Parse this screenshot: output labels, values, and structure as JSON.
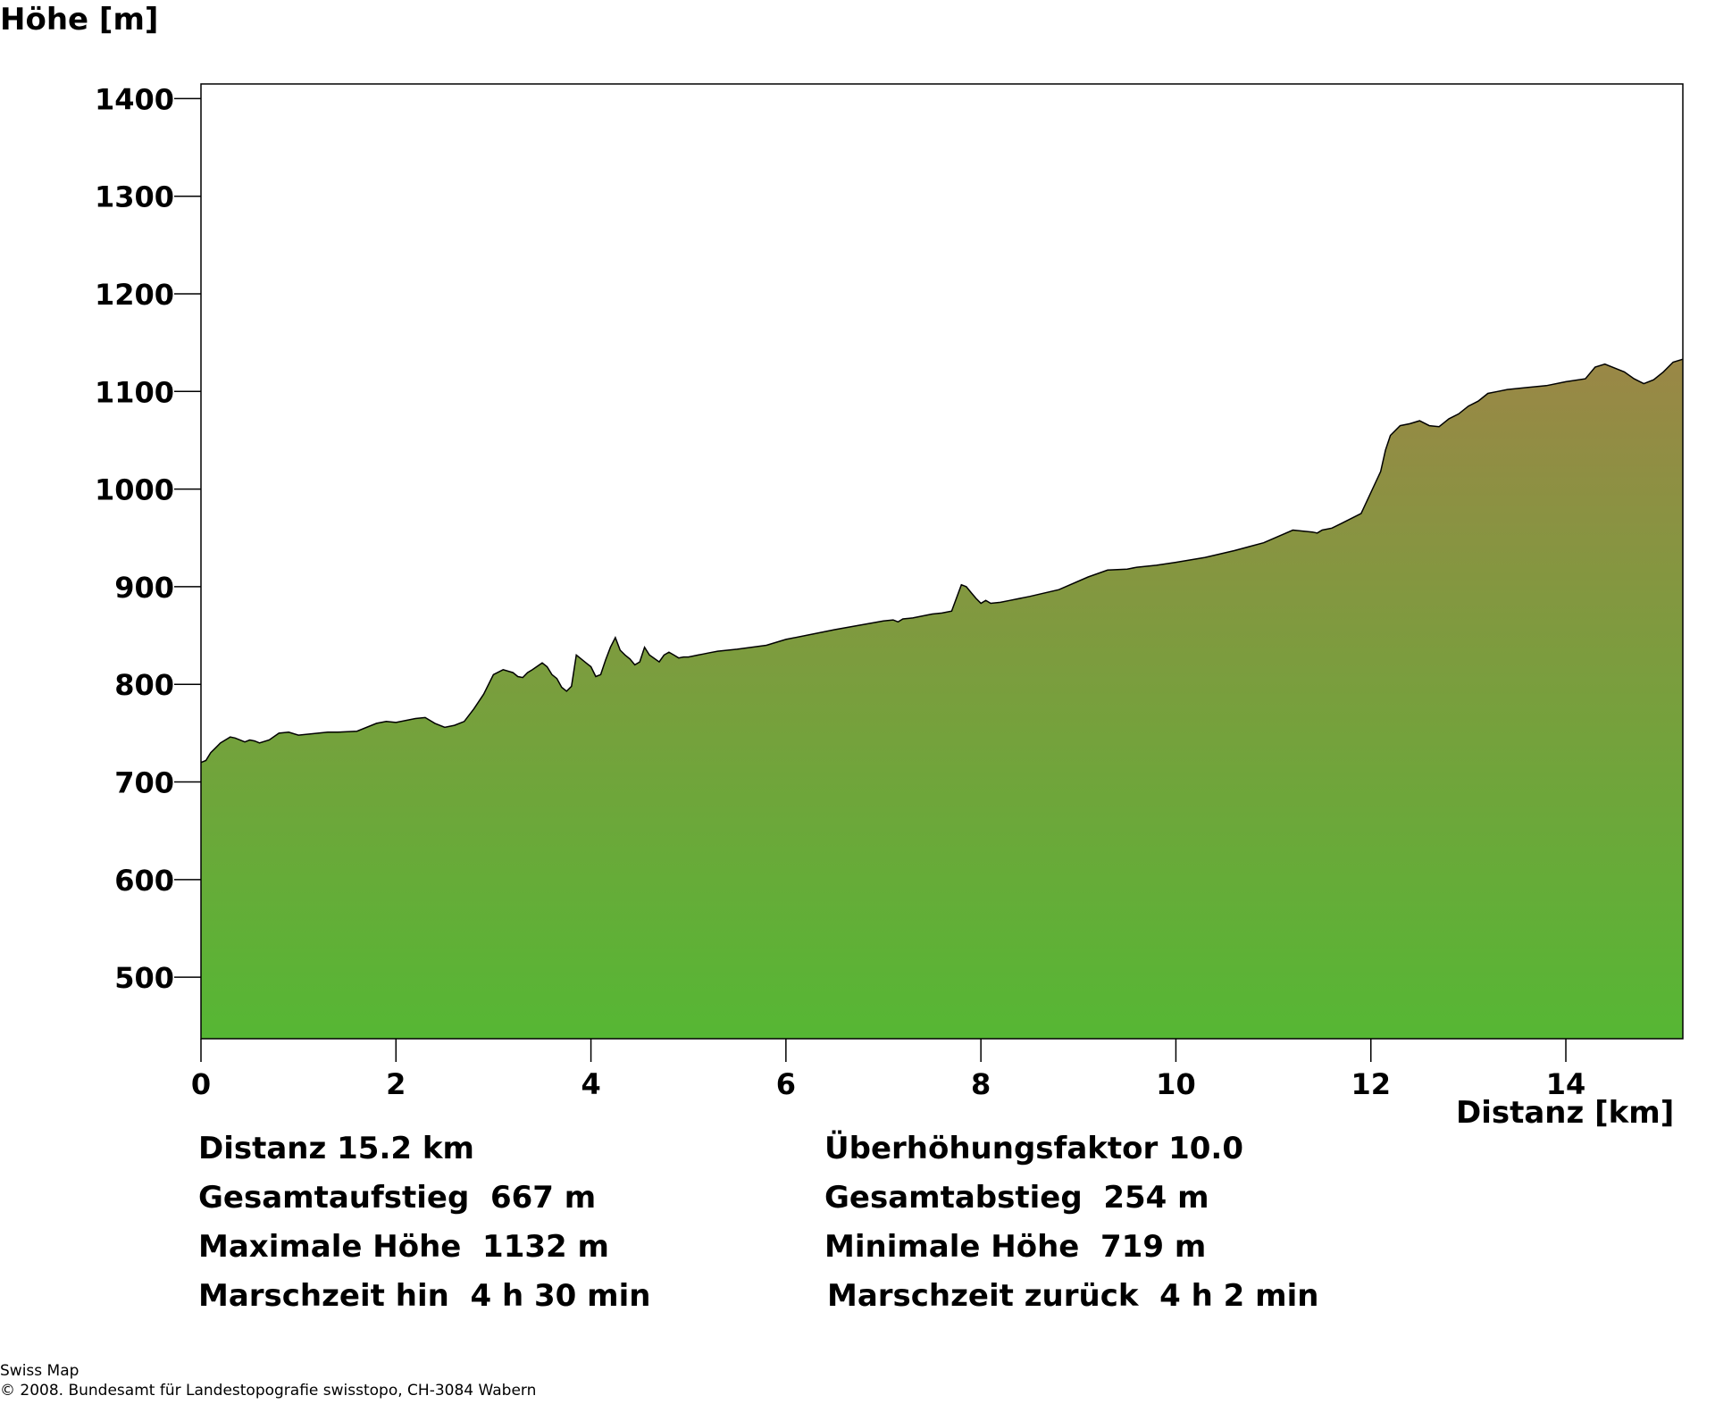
{
  "chart_data": {
    "type": "area",
    "title": "",
    "ylabel": "Höhe [m]",
    "xlabel": "Distanz [km]",
    "xlim": [
      0,
      15.2
    ],
    "ylim": [
      437,
      1415
    ],
    "xticks": [
      0,
      2,
      4,
      6,
      8,
      10,
      12,
      14
    ],
    "yticks": [
      500,
      600,
      700,
      800,
      900,
      1000,
      1100,
      1200,
      1300,
      1400
    ],
    "grid": false,
    "legend": "none",
    "colors": {
      "fill_top": "#9a8746",
      "fill_bottom": "#56b734",
      "outline": "#000000"
    },
    "series": [
      {
        "x": [
          0,
          0.05,
          0.1,
          0.15,
          0.2,
          0.3,
          0.35,
          0.45,
          0.5,
          0.55,
          0.6,
          0.7,
          0.8,
          0.9,
          1.0,
          1.2,
          1.3,
          1.4,
          1.6,
          1.8,
          1.9,
          2.0,
          2.2,
          2.3,
          2.4,
          2.5,
          2.6,
          2.7,
          2.8,
          2.9,
          3.0,
          3.1,
          3.2,
          3.25,
          3.3,
          3.35,
          3.4,
          3.5,
          3.55,
          3.6,
          3.65,
          3.7,
          3.75,
          3.8,
          3.85,
          3.9,
          3.95,
          4.0,
          4.05,
          4.1,
          4.15,
          4.2,
          4.25,
          4.3,
          4.35,
          4.4,
          4.45,
          4.5,
          4.55,
          4.6,
          4.7,
          4.75,
          4.8,
          4.85,
          4.9,
          4.95,
          5.0,
          5.05,
          5.1,
          5.15,
          5.2,
          5.3,
          5.5,
          5.8,
          6.0,
          6.5,
          7.0,
          7.1,
          7.15,
          7.2,
          7.3,
          7.5,
          7.6,
          7.7,
          7.8,
          7.85,
          7.9,
          7.95,
          8.0,
          8.05,
          8.1,
          8.2,
          8.3,
          8.5,
          8.8,
          9.1,
          9.3,
          9.5,
          9.6,
          9.8,
          10.0,
          10.3,
          10.6,
          10.9,
          11.2,
          11.4,
          11.45,
          11.5,
          11.6,
          11.7,
          11.9,
          12.1,
          12.15,
          12.2,
          12.3,
          12.4,
          12.5,
          12.6,
          12.7,
          12.75,
          12.8,
          12.9,
          13.0,
          13.1,
          13.2,
          13.3,
          13.4,
          13.6,
          13.8,
          14.0,
          14.2,
          14.3,
          14.4,
          14.6,
          14.7,
          14.8,
          14.9,
          15.0,
          15.1,
          15.2
        ],
        "y": [
          720,
          722,
          730,
          735,
          740,
          746,
          745,
          741,
          743,
          742,
          740,
          743,
          750,
          751,
          748,
          750,
          751,
          751,
          752,
          760,
          762,
          761,
          765,
          766,
          760,
          756,
          758,
          762,
          775,
          790,
          810,
          815,
          812,
          808,
          807,
          812,
          815,
          822,
          818,
          810,
          806,
          797,
          793,
          798,
          830,
          826,
          822,
          818,
          808,
          810,
          825,
          838,
          848,
          835,
          830,
          826,
          820,
          823,
          838,
          830,
          823,
          830,
          833,
          830,
          827,
          828,
          828,
          829,
          830,
          831,
          832,
          834,
          836,
          840,
          846,
          856,
          865,
          866,
          864,
          867,
          868,
          872,
          873,
          875,
          902,
          900,
          894,
          888,
          883,
          886,
          883,
          884,
          886,
          890,
          897,
          910,
          917,
          918,
          920,
          922,
          925,
          930,
          937,
          945,
          958,
          956,
          955,
          958,
          960,
          965,
          975,
          1018,
          1040,
          1055,
          1065,
          1067,
          1070,
          1065,
          1064,
          1068,
          1072,
          1077,
          1085,
          1090,
          1098,
          1100,
          1102,
          1104,
          1106,
          1110,
          1113,
          1125,
          1128,
          1120,
          1113,
          1108,
          1112,
          1120,
          1130,
          1133
        ]
      }
    ]
  },
  "stats": {
    "distanz": "Distanz 15.2 km",
    "ueberhoehung": "Überhöhungsfaktor 10.0",
    "aufstieg": "Gesamtaufstieg  667 m",
    "abstieg": "Gesamtabstieg  254 m",
    "max_hoehe": "Maximale Höhe  1132 m",
    "min_hoehe": "Minimale Höhe  719 m",
    "marschzeit_hin": "Marschzeit hin  4 h 30 min",
    "marschzeit_zurueck": "Marschzeit zurück  4 h 2 min"
  },
  "footer": {
    "line1": "Swiss Map",
    "line2": "© 2008. Bundesamt für Landestopografie swisstopo, CH-3084 Wabern"
  }
}
